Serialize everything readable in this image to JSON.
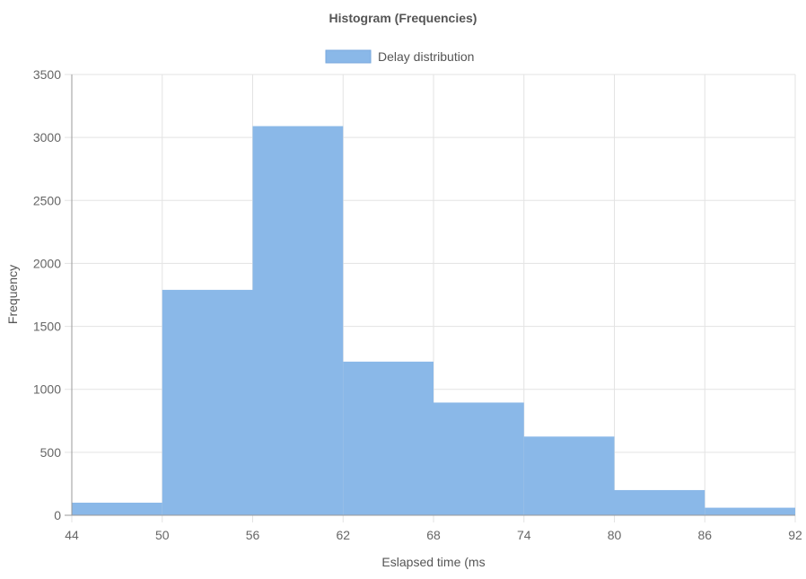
{
  "chart_data": {
    "type": "bar",
    "title": "Histogram (Frequencies)",
    "xlabel": "Eslapsed time (ms",
    "ylabel": "Frequency",
    "xlim": [
      44,
      92
    ],
    "ylim": [
      0,
      3500
    ],
    "x_ticks": [
      44,
      50,
      56,
      62,
      68,
      74,
      80,
      86,
      92
    ],
    "y_ticks": [
      0,
      500,
      1000,
      1500,
      2000,
      2500,
      3000,
      3500
    ],
    "grid": true,
    "legend": {
      "position": "top-center"
    },
    "series": [
      {
        "name": "Delay distribution",
        "color": "#8AB8E8",
        "bins": [
          {
            "start": 44,
            "end": 50,
            "value": 100
          },
          {
            "start": 50,
            "end": 56,
            "value": 1790
          },
          {
            "start": 56,
            "end": 62,
            "value": 3090
          },
          {
            "start": 62,
            "end": 68,
            "value": 1220
          },
          {
            "start": 68,
            "end": 74,
            "value": 895
          },
          {
            "start": 74,
            "end": 80,
            "value": 625
          },
          {
            "start": 80,
            "end": 86,
            "value": 200
          },
          {
            "start": 86,
            "end": 92,
            "value": 60
          }
        ]
      }
    ]
  }
}
